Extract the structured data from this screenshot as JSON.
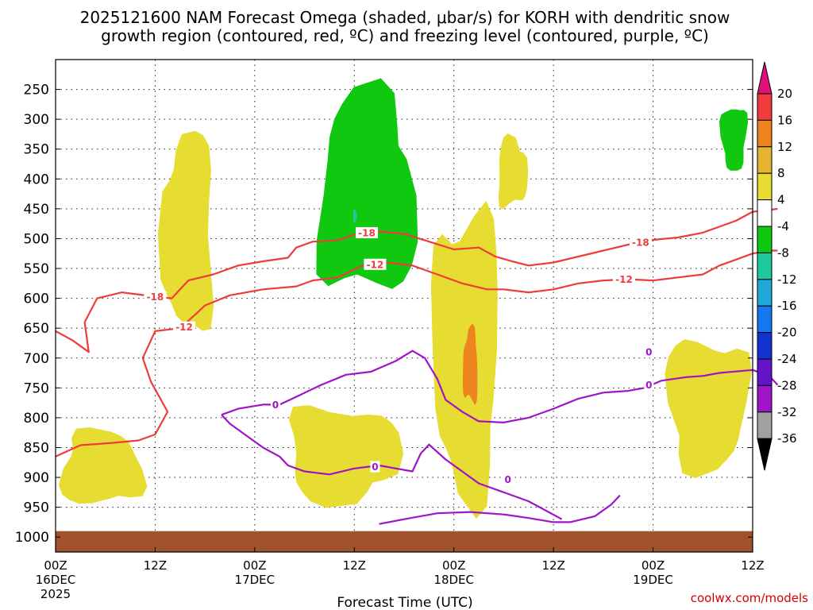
{
  "chart_data": {
    "type": "time-height cross-section",
    "title_line1": "2025121600 NAM Forecast Omega (shaded, μbar/s) for KORH with dendritic snow",
    "title_line2": "growth region (contoured, red, ºC) and freezing level (contoured, purple, ºC)",
    "xlabel": "Forecast Time (UTC)",
    "credit": "coolwx.com/models",
    "y_axis": {
      "unit": "hPa",
      "range": [
        200,
        1025
      ],
      "ticks": [
        250,
        300,
        350,
        400,
        450,
        500,
        550,
        600,
        650,
        700,
        750,
        800,
        850,
        900,
        950,
        1000
      ]
    },
    "x_axis": {
      "unit": "forecast hour",
      "range": [
        0,
        84
      ],
      "ticks": [
        {
          "hour": 0,
          "line1": "00Z",
          "line2": "16DEC",
          "line3": "2025"
        },
        {
          "hour": 12,
          "line1": "12Z",
          "line2": "",
          "line3": ""
        },
        {
          "hour": 24,
          "line1": "00Z",
          "line2": "17DEC",
          "line3": ""
        },
        {
          "hour": 36,
          "line1": "12Z",
          "line2": "",
          "line3": ""
        },
        {
          "hour": 48,
          "line1": "00Z",
          "line2": "18DEC",
          "line3": ""
        },
        {
          "hour": 60,
          "line1": "12Z",
          "line2": "",
          "line3": ""
        },
        {
          "hour": 72,
          "line1": "00Z",
          "line2": "19DEC",
          "line3": ""
        },
        {
          "hour": 84,
          "line1": "12Z",
          "line2": "",
          "line3": ""
        }
      ]
    },
    "colorbar": {
      "labels": [
        "20",
        "16",
        "12",
        "8",
        "4",
        "-4",
        "-8",
        "-12",
        "-16",
        "-20",
        "-24",
        "-28",
        "-32",
        "-36"
      ],
      "colors": [
        "#e0107a",
        "#f03c3c",
        "#ee8420",
        "#e6b432",
        "#e6dc32",
        "#ffffff",
        "#10c810",
        "#20c8a0",
        "#20a8d8",
        "#1478f0",
        "#1432d0",
        "#6414c8",
        "#a014c8",
        "#a0a0a0",
        "#000000"
      ]
    },
    "ground_color": "#a0522d",
    "omega_regions": [
      {
        "name": "upward-motion-main",
        "level": "-4 to -8",
        "color": "#10c810",
        "time_hours": [
          31,
          44
        ],
        "pressure_hPa": [
          235,
          620
        ]
      },
      {
        "name": "upward-motion-core",
        "level": "-8 to -12",
        "color": "#20c8a0",
        "time_hours": [
          35.8,
          36.3
        ],
        "pressure_hPa": [
          450,
          475
        ]
      },
      {
        "name": "upward-motion-east",
        "level": "-4 to -8",
        "color": "#10c810",
        "time_hours": [
          80,
          83.5
        ],
        "pressure_hPa": [
          270,
          390
        ]
      },
      {
        "name": "sinking-west-column",
        "level": "4 to 8",
        "color": "#e6dc32",
        "time_hours": [
          12.5,
          19.5
        ],
        "pressure_hPa": [
          305,
          680
        ]
      },
      {
        "name": "sinking-lower-west",
        "level": "4 to 8",
        "color": "#e6dc32",
        "time_hours": [
          0,
          11
        ],
        "pressure_hPa": [
          815,
          955
        ]
      },
      {
        "name": "sinking-lower-middle",
        "level": "4 to 8",
        "color": "#e6dc32",
        "time_hours": [
          27,
          42
        ],
        "pressure_hPa": [
          770,
          950
        ]
      },
      {
        "name": "sinking-main-column",
        "level": "4 to 8",
        "color": "#e6dc32",
        "time_hours": [
          45,
          54
        ],
        "pressure_hPa": [
          415,
          960
        ]
      },
      {
        "name": "sinking-max",
        "level": "12 to 16",
        "color": "#ee8420",
        "time_hours": [
          49,
          51
        ],
        "pressure_hPa": [
          645,
          785
        ]
      },
      {
        "name": "sinking-upper-mid",
        "level": "4 to 8",
        "color": "#e6dc32",
        "time_hours": [
          53,
          57
        ],
        "pressure_hPa": [
          325,
          455
        ]
      },
      {
        "name": "sinking-east",
        "level": "4 to 8",
        "color": "#e6dc32",
        "time_hours": [
          73,
          84
        ],
        "pressure_hPa": [
          650,
          900
        ]
      }
    ],
    "contours": [
      {
        "name": "dgz-minus-18",
        "value": -18,
        "label": "-18",
        "color": "#ee3c3c",
        "points": [
          [
            0,
            655
          ],
          [
            2,
            670
          ],
          [
            4,
            690
          ],
          [
            3.5,
            640
          ],
          [
            5,
            600
          ],
          [
            8,
            590
          ],
          [
            12,
            597
          ],
          [
            14,
            600
          ],
          [
            16,
            570
          ],
          [
            19,
            560
          ],
          [
            22,
            545
          ],
          [
            25,
            538
          ],
          [
            28,
            532
          ],
          [
            29,
            515
          ],
          [
            31,
            505
          ],
          [
            34,
            503
          ],
          [
            36,
            493
          ],
          [
            39,
            488
          ],
          [
            42,
            492
          ],
          [
            45,
            505
          ],
          [
            48,
            518
          ],
          [
            51,
            515
          ],
          [
            53,
            530
          ],
          [
            55,
            538
          ],
          [
            57,
            545
          ],
          [
            60,
            540
          ],
          [
            63,
            530
          ],
          [
            66,
            520
          ],
          [
            69,
            510
          ],
          [
            72,
            502
          ],
          [
            75,
            498
          ],
          [
            78,
            490
          ],
          [
            80,
            480
          ],
          [
            82,
            470
          ],
          [
            84,
            455
          ],
          [
            86,
            452
          ],
          [
            87,
            450
          ]
        ]
      },
      {
        "name": "dgz-minus-12",
        "value": -12,
        "label": "-12",
        "color": "#ee3c3c",
        "points": [
          [
            0,
            865
          ],
          [
            3,
            846
          ],
          [
            7,
            842
          ],
          [
            10,
            838
          ],
          [
            12,
            828
          ],
          [
            13.5,
            790
          ],
          [
            11.5,
            740
          ],
          [
            10.5,
            700
          ],
          [
            12,
            655
          ],
          [
            15,
            650
          ],
          [
            17,
            625
          ],
          [
            18,
            612
          ],
          [
            21,
            595
          ],
          [
            25,
            585
          ],
          [
            29,
            580
          ],
          [
            31,
            570
          ],
          [
            34,
            565
          ],
          [
            37,
            545
          ],
          [
            40,
            540
          ],
          [
            43,
            545
          ],
          [
            46,
            560
          ],
          [
            49,
            575
          ],
          [
            52,
            585
          ],
          [
            54,
            585
          ],
          [
            57,
            590
          ],
          [
            60,
            585
          ],
          [
            63,
            575
          ],
          [
            66,
            570
          ],
          [
            69,
            568
          ],
          [
            72,
            570
          ],
          [
            75,
            565
          ],
          [
            78,
            560
          ],
          [
            80,
            545
          ],
          [
            82,
            535
          ],
          [
            84,
            525
          ],
          [
            86,
            520
          ],
          [
            87,
            520
          ]
        ]
      },
      {
        "name": "freezing-level-main",
        "value": 0,
        "label": "0",
        "color": "#a014c8",
        "points": [
          [
            20,
            795
          ],
          [
            22,
            785
          ],
          [
            25,
            778
          ],
          [
            27,
            778
          ],
          [
            29,
            765
          ],
          [
            32,
            745
          ],
          [
            35,
            728
          ],
          [
            38,
            723
          ],
          [
            41,
            705
          ],
          [
            43,
            688
          ],
          [
            44.5,
            700
          ],
          [
            46,
            735
          ],
          [
            47,
            770
          ],
          [
            49,
            790
          ],
          [
            51,
            806
          ],
          [
            54,
            808
          ],
          [
            57,
            800
          ],
          [
            60,
            785
          ],
          [
            63,
            768
          ],
          [
            66,
            758
          ],
          [
            69,
            755
          ],
          [
            71,
            750
          ],
          [
            73,
            738
          ],
          [
            76,
            732
          ],
          [
            78,
            730
          ],
          [
            80,
            725
          ],
          [
            84,
            720
          ],
          [
            86,
            730
          ],
          [
            87,
            745
          ]
        ]
      },
      {
        "name": "freezing-level-lower",
        "value": 0,
        "label": "0",
        "color": "#a014c8",
        "points": [
          [
            20,
            795
          ],
          [
            21,
            810
          ],
          [
            23,
            830
          ],
          [
            25,
            850
          ],
          [
            27,
            865
          ],
          [
            28,
            880
          ],
          [
            30,
            890
          ],
          [
            33,
            895
          ],
          [
            36,
            885
          ],
          [
            39,
            880
          ],
          [
            41,
            885
          ],
          [
            43,
            890
          ],
          [
            44,
            860
          ],
          [
            45,
            845
          ],
          [
            47,
            870
          ],
          [
            49,
            890
          ],
          [
            51,
            910
          ],
          [
            54,
            925
          ],
          [
            57,
            940
          ],
          [
            59,
            955
          ],
          [
            61,
            970
          ]
        ]
      },
      {
        "name": "freezing-level-near-ground",
        "value": 0,
        "label": "0",
        "color": "#a014c8",
        "points": [
          [
            39,
            978
          ],
          [
            42,
            970
          ],
          [
            46,
            960
          ],
          [
            50,
            958
          ],
          [
            54,
            962
          ],
          [
            57,
            968
          ],
          [
            60,
            975
          ],
          [
            62,
            975
          ],
          [
            65,
            965
          ],
          [
            67,
            945
          ],
          [
            68,
            930
          ]
        ]
      }
    ],
    "contour_labels": [
      {
        "text": "-18",
        "color": "#ee3c3c",
        "hour": 12,
        "pressure": 597
      },
      {
        "text": "-18",
        "color": "#ee3c3c",
        "hour": 37.5,
        "pressure": 490
      },
      {
        "text": "-18",
        "color": "#ee3c3c",
        "hour": 70.5,
        "pressure": 506
      },
      {
        "text": "-12",
        "color": "#ee3c3c",
        "hour": 15.5,
        "pressure": 648
      },
      {
        "text": "-12",
        "color": "#ee3c3c",
        "hour": 38.5,
        "pressure": 543
      },
      {
        "text": "-12",
        "color": "#ee3c3c",
        "hour": 68.5,
        "pressure": 568
      },
      {
        "text": "0",
        "color": "#a014c8",
        "hour": 26.5,
        "pressure": 778
      },
      {
        "text": "0",
        "color": "#a014c8",
        "hour": 38.5,
        "pressure": 882
      },
      {
        "text": "0",
        "color": "#a014c8",
        "hour": 54.5,
        "pressure": 903
      },
      {
        "text": "0",
        "color": "#a014c8",
        "hour": 71.5,
        "pressure": 690
      },
      {
        "text": "0",
        "color": "#a014c8",
        "hour": 71.5,
        "pressure": 745
      }
    ]
  }
}
